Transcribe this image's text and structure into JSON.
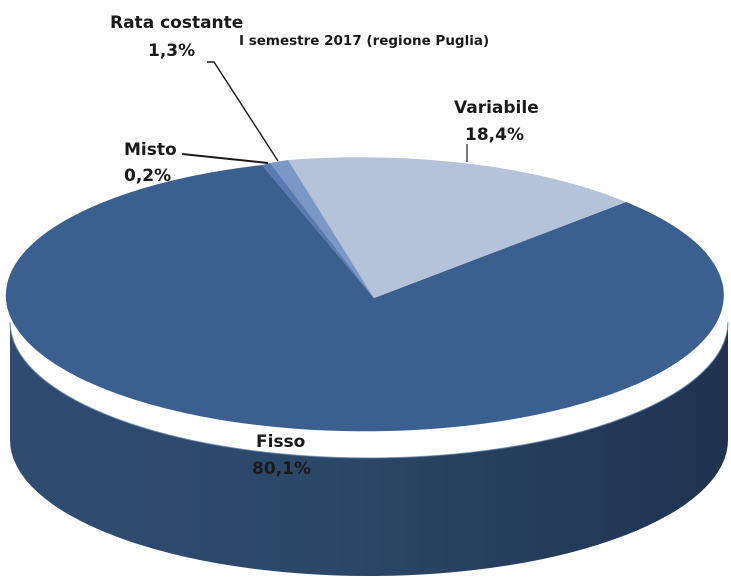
{
  "chart_data": {
    "type": "pie",
    "title": "I semestre 2017 (regione Puglia)",
    "slices": [
      {
        "name": "Fisso",
        "value": 80.1,
        "label": "80,1%",
        "color": "#3b5f8e"
      },
      {
        "name": "Variabile",
        "value": 18.4,
        "label": "18,4%",
        "color": "#b4c2da"
      },
      {
        "name": "Rata costante",
        "value": 1.3,
        "label": "1,3%",
        "color": "#7b97c5"
      },
      {
        "name": "Misto",
        "value": 0.2,
        "label": "0,2%",
        "color": "#5a7ab0"
      }
    ],
    "style": "3d"
  }
}
